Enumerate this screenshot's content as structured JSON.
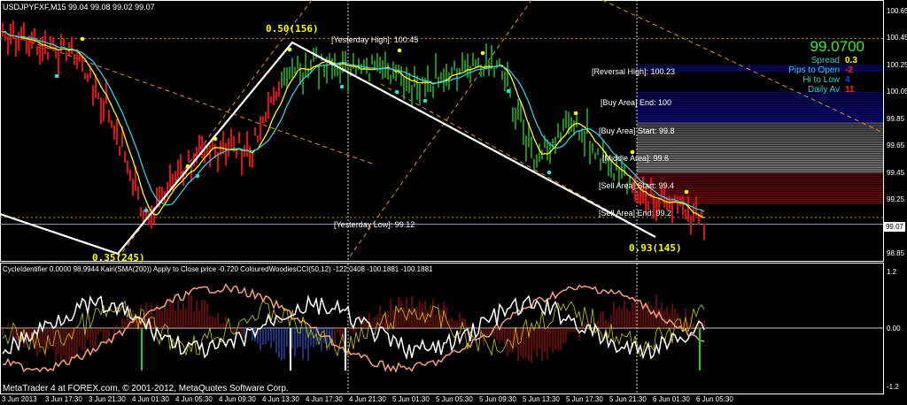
{
  "header": {
    "symbol_line": "USDJPYFXF,M15  99.04 99.08 99.02 99.07"
  },
  "indicator_header": "CycleIdentifier 0.0000 98.9944  Kairi(SMA(200)) Apply to Close price -0.720  ColouredWoodiesCCI(50,12) -122.0408 -100.1881 -100.1881",
  "footer": "MetaTrader 4 at FOREX.com, © 2001-2012, MetaQuotes Software Corp.",
  "info_panel": {
    "price": "99.0700",
    "rows": [
      {
        "label": "Spread",
        "value": "0.3",
        "color": "#ffff00"
      },
      {
        "label": "Pips to Open",
        "value": "-2",
        "color": "#ff2020"
      },
      {
        "label": "Hi to Low",
        "value": "4",
        "color": "#2040ff"
      },
      {
        "label": "Daily Av",
        "value": "11",
        "color": "#ff2020"
      }
    ]
  },
  "levels": {
    "yesterday_high": "[Yesterday High]: 100.45",
    "yesterday_low": "[Yesterday Low]: 99.12",
    "reversal_high": "[Reversal High]: 100.23",
    "buy_end": "[Buy Area] End: 100",
    "buy_start": "[Buy Area] Start: 99.8",
    "middle": "[Middle Area]: 99.6",
    "sell_start": "[Sell Area] Start: 99.4",
    "sell_end": "[Sell Area] End: 99.2"
  },
  "fib_labels": {
    "top": "0.50(156)",
    "bottom_left": "0.35(245)",
    "bottom_right": "0.93(145)"
  },
  "price_axis": [
    "100.65",
    "100.45",
    "100.25",
    "100.05",
    "99.85",
    "99.65",
    "99.45",
    "99.25",
    "98.85"
  ],
  "current_price_tag": "99.07",
  "indicator_axis": [
    "1.2",
    "0.00",
    "-1.2"
  ],
  "time_axis": [
    "3 Jun 2013",
    "3 Jun 17:30",
    "3 Jun 21:30",
    "4 Jun 01:30",
    "4 Jun 05:30",
    "4 Jun 09:30",
    "4 Jun 13:30",
    "4 Jun 17:30",
    "4 Jun 21:30",
    "5 Jun 01:30",
    "5 Jun 05:30",
    "5 Jun 09:30",
    "5 Jun 13:30",
    "5 Jun 17:30",
    "5 Jun 21:30",
    "6 Jun 01:30",
    "6 Jun 05:30"
  ],
  "chart_data": {
    "type": "candlestick-bars",
    "symbol": "USDJPYFXF",
    "timeframe": "M15",
    "ylim": [
      98.75,
      100.72
    ],
    "close_keypoints": [
      100.5,
      100.4,
      100.35,
      99.9,
      99.1,
      99.45,
      99.65,
      99.6,
      100.2,
      100.3,
      100.25,
      100.2,
      100.1,
      100.2,
      100.25,
      99.55,
      99.85,
      99.55,
      99.3,
      99.2,
      99.07
    ],
    "colors": {
      "bull": "#1e8c1e",
      "bear": "#e01010",
      "ma_fast": "#ffff00",
      "ma_slow": "#33ccdd",
      "buy_zone": "#0a0a90",
      "middle_zone": "#8a8a8a",
      "sell_zone": "#8a0a0a"
    }
  }
}
